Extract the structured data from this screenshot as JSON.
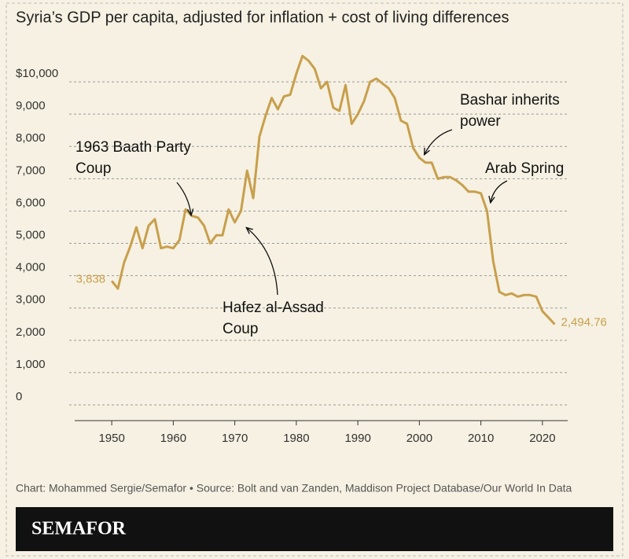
{
  "chart_data": {
    "type": "line",
    "title": "Syria’s GDP per capita, adjusted for inflation + cost of living differences",
    "source": "Chart: Mohammed Sergie/Semafor • Source: Bolt and van Zanden, Maddison Project Database/Our World In Data",
    "brand": "SEMAFOR",
    "color": "#c89f4c",
    "grid": true,
    "x": [
      1950,
      1951,
      1952,
      1953,
      1954,
      1955,
      1956,
      1957,
      1958,
      1959,
      1960,
      1961,
      1962,
      1963,
      1964,
      1965,
      1966,
      1967,
      1968,
      1969,
      1970,
      1971,
      1972,
      1973,
      1974,
      1975,
      1976,
      1977,
      1978,
      1979,
      1980,
      1981,
      1982,
      1983,
      1984,
      1985,
      1986,
      1987,
      1988,
      1989,
      1990,
      1991,
      1992,
      1993,
      1994,
      1995,
      1996,
      1997,
      1998,
      1999,
      2000,
      2001,
      2002,
      2003,
      2004,
      2005,
      2006,
      2007,
      2008,
      2009,
      2010,
      2011,
      2012,
      2013,
      2014,
      2015,
      2016,
      2017,
      2018,
      2019,
      2020,
      2021,
      2022
    ],
    "values": [
      3838,
      3600,
      4400,
      4900,
      5500,
      4850,
      5550,
      5750,
      4850,
      4900,
      4850,
      5100,
      6050,
      5850,
      5800,
      5550,
      5000,
      5250,
      5250,
      6050,
      5650,
      6000,
      7250,
      6400,
      8300,
      8950,
      9500,
      9150,
      9550,
      9600,
      10250,
      10800,
      10650,
      10400,
      9800,
      10000,
      9200,
      9100,
      9900,
      8700,
      9000,
      9400,
      10000,
      10100,
      9950,
      9800,
      9500,
      8800,
      8700,
      7950,
      7650,
      7500,
      7500,
      7000,
      7050,
      7050,
      6950,
      6800,
      6600,
      6600,
      6550,
      6000,
      4450,
      3500,
      3400,
      3450,
      3350,
      3400,
      3400,
      3350,
      2900,
      2700,
      2494.76
    ],
    "value_labels": [
      "3,838",
      null,
      null,
      null,
      null,
      null,
      null,
      null,
      null,
      null,
      null,
      null,
      null,
      null,
      null,
      null,
      null,
      null,
      null,
      null,
      null,
      null,
      null,
      null,
      null,
      null,
      null,
      null,
      null,
      null,
      null,
      null,
      null,
      null,
      null,
      null,
      null,
      null,
      null,
      null,
      null,
      null,
      null,
      null,
      null,
      null,
      null,
      null,
      null,
      null,
      null,
      null,
      null,
      null,
      null,
      null,
      null,
      null,
      null,
      null,
      null,
      null,
      null,
      null,
      null,
      null,
      null,
      null,
      null,
      null,
      null,
      null,
      "2,494.76"
    ],
    "xlim": [
      1945,
      2025
    ],
    "xticks": [
      1950,
      1960,
      1970,
      1980,
      1990,
      2000,
      2010,
      2020
    ],
    "ylim": [
      0,
      11000
    ],
    "yticks": [
      0,
      {
        "value": 1000,
        "label": "1,000"
      },
      {
        "value": 2000,
        "label": "2,000"
      },
      {
        "value": 3000,
        "label": "3,000"
      },
      {
        "value": 4000,
        "label": "4,000"
      },
      {
        "value": 5000,
        "label": "5,000"
      },
      {
        "value": 6000,
        "label": "6,000"
      },
      {
        "value": 7000,
        "label": "7,000"
      },
      {
        "value": 8000,
        "label": "8,000"
      },
      {
        "value": 9000,
        "label": "9,000"
      },
      {
        "value": 10000,
        "label": "$10,000"
      }
    ],
    "annotations": [
      {
        "lines": [
          "1963 Baath Party",
          "Coup"
        ]
      },
      {
        "lines": [
          "Hafez al-Assad",
          "Coup"
        ]
      },
      {
        "lines": [
          "Bashar inherits",
          "power"
        ]
      },
      {
        "lines": [
          "Arab Spring"
        ]
      }
    ]
  }
}
